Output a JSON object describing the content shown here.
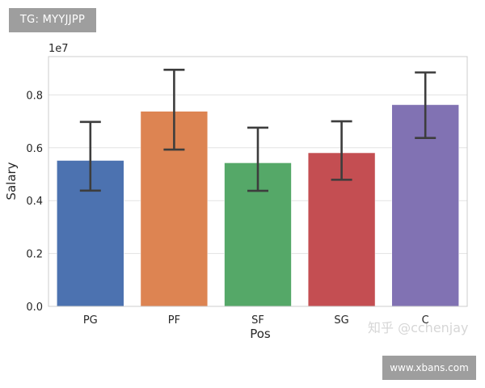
{
  "badges": {
    "top_left": "TG: MYYJJPP",
    "bottom_right": "www.xbans.com"
  },
  "watermark": "知乎 @cchenjay",
  "chart_data": {
    "type": "bar",
    "xlabel": "Pos",
    "ylabel": "Salary",
    "y_offset_label": "1e7",
    "categories": [
      "PG",
      "PF",
      "SF",
      "SG",
      "C"
    ],
    "values": [
      5520000,
      7380000,
      5430000,
      5810000,
      7630000
    ],
    "error_low": [
      4380000,
      5930000,
      4370000,
      4790000,
      6370000
    ],
    "error_high": [
      6980000,
      8950000,
      6760000,
      7000000,
      8850000
    ],
    "colors": [
      "#4c72b0",
      "#dd8452",
      "#55a868",
      "#c44e52",
      "#8172b3"
    ],
    "ylim": [
      0,
      9450000
    ],
    "yticks": [
      0,
      2000000,
      4000000,
      6000000,
      8000000
    ],
    "ytick_labels": [
      "0.0",
      "0.2",
      "0.4",
      "0.6",
      "0.8"
    ],
    "grid": true
  }
}
